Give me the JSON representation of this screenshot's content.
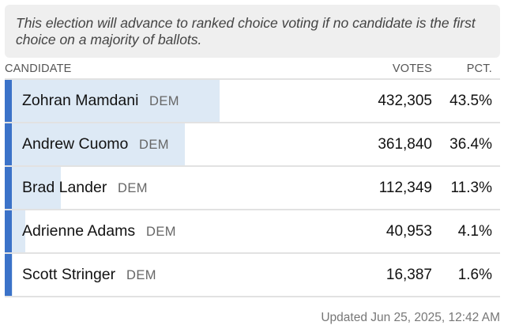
{
  "notice": "This election will advance to ranked choice voting if no candidate is the first choice on a majority of ballots.",
  "columns": {
    "candidate": "CANDIDATE",
    "votes": "VOTES",
    "pct": "PCT."
  },
  "accent_color": "#3b72c8",
  "bar_color": "#dde9f5",
  "candidates": [
    {
      "name": "Zohran Mamdani",
      "party": "DEM",
      "votes": "432,305",
      "pct": "43.5%",
      "share": 0.435
    },
    {
      "name": "Andrew Cuomo",
      "party": "DEM",
      "votes": "361,840",
      "pct": "36.4%",
      "share": 0.364
    },
    {
      "name": "Brad Lander",
      "party": "DEM",
      "votes": "112,349",
      "pct": "11.3%",
      "share": 0.113
    },
    {
      "name": "Adrienne Adams",
      "party": "DEM",
      "votes": "40,953",
      "pct": "4.1%",
      "share": 0.041
    },
    {
      "name": "Scott Stringer",
      "party": "DEM",
      "votes": "16,387",
      "pct": "1.6%",
      "share": 0.016
    }
  ],
  "updated": "Updated Jun 25, 2025, 12:42 AM"
}
